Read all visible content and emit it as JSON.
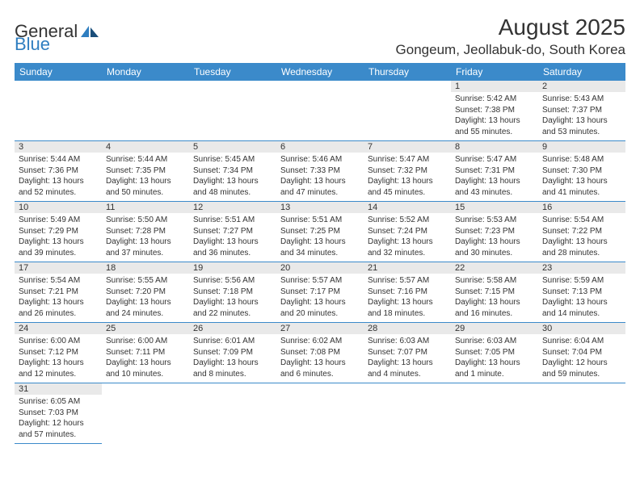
{
  "logo": {
    "text1": "General",
    "text2": "Blue"
  },
  "title": {
    "month": "August 2025",
    "location": "Gongeum, Jeollabuk-do, South Korea"
  },
  "colors": {
    "header_bg": "#3b8aca",
    "header_text": "#ffffff",
    "daynum_bg": "#e9e9e9",
    "border": "#3b8aca",
    "text": "#333333",
    "logo_accent": "#2f7ec0"
  },
  "weekdays": [
    "Sunday",
    "Monday",
    "Tuesday",
    "Wednesday",
    "Thursday",
    "Friday",
    "Saturday"
  ],
  "weeks": [
    [
      null,
      null,
      null,
      null,
      null,
      {
        "n": "1",
        "sr": "Sunrise: 5:42 AM",
        "ss": "Sunset: 7:38 PM",
        "dl": "Daylight: 13 hours and 55 minutes."
      },
      {
        "n": "2",
        "sr": "Sunrise: 5:43 AM",
        "ss": "Sunset: 7:37 PM",
        "dl": "Daylight: 13 hours and 53 minutes."
      }
    ],
    [
      {
        "n": "3",
        "sr": "Sunrise: 5:44 AM",
        "ss": "Sunset: 7:36 PM",
        "dl": "Daylight: 13 hours and 52 minutes."
      },
      {
        "n": "4",
        "sr": "Sunrise: 5:44 AM",
        "ss": "Sunset: 7:35 PM",
        "dl": "Daylight: 13 hours and 50 minutes."
      },
      {
        "n": "5",
        "sr": "Sunrise: 5:45 AM",
        "ss": "Sunset: 7:34 PM",
        "dl": "Daylight: 13 hours and 48 minutes."
      },
      {
        "n": "6",
        "sr": "Sunrise: 5:46 AM",
        "ss": "Sunset: 7:33 PM",
        "dl": "Daylight: 13 hours and 47 minutes."
      },
      {
        "n": "7",
        "sr": "Sunrise: 5:47 AM",
        "ss": "Sunset: 7:32 PM",
        "dl": "Daylight: 13 hours and 45 minutes."
      },
      {
        "n": "8",
        "sr": "Sunrise: 5:47 AM",
        "ss": "Sunset: 7:31 PM",
        "dl": "Daylight: 13 hours and 43 minutes."
      },
      {
        "n": "9",
        "sr": "Sunrise: 5:48 AM",
        "ss": "Sunset: 7:30 PM",
        "dl": "Daylight: 13 hours and 41 minutes."
      }
    ],
    [
      {
        "n": "10",
        "sr": "Sunrise: 5:49 AM",
        "ss": "Sunset: 7:29 PM",
        "dl": "Daylight: 13 hours and 39 minutes."
      },
      {
        "n": "11",
        "sr": "Sunrise: 5:50 AM",
        "ss": "Sunset: 7:28 PM",
        "dl": "Daylight: 13 hours and 37 minutes."
      },
      {
        "n": "12",
        "sr": "Sunrise: 5:51 AM",
        "ss": "Sunset: 7:27 PM",
        "dl": "Daylight: 13 hours and 36 minutes."
      },
      {
        "n": "13",
        "sr": "Sunrise: 5:51 AM",
        "ss": "Sunset: 7:25 PM",
        "dl": "Daylight: 13 hours and 34 minutes."
      },
      {
        "n": "14",
        "sr": "Sunrise: 5:52 AM",
        "ss": "Sunset: 7:24 PM",
        "dl": "Daylight: 13 hours and 32 minutes."
      },
      {
        "n": "15",
        "sr": "Sunrise: 5:53 AM",
        "ss": "Sunset: 7:23 PM",
        "dl": "Daylight: 13 hours and 30 minutes."
      },
      {
        "n": "16",
        "sr": "Sunrise: 5:54 AM",
        "ss": "Sunset: 7:22 PM",
        "dl": "Daylight: 13 hours and 28 minutes."
      }
    ],
    [
      {
        "n": "17",
        "sr": "Sunrise: 5:54 AM",
        "ss": "Sunset: 7:21 PM",
        "dl": "Daylight: 13 hours and 26 minutes."
      },
      {
        "n": "18",
        "sr": "Sunrise: 5:55 AM",
        "ss": "Sunset: 7:20 PM",
        "dl": "Daylight: 13 hours and 24 minutes."
      },
      {
        "n": "19",
        "sr": "Sunrise: 5:56 AM",
        "ss": "Sunset: 7:18 PM",
        "dl": "Daylight: 13 hours and 22 minutes."
      },
      {
        "n": "20",
        "sr": "Sunrise: 5:57 AM",
        "ss": "Sunset: 7:17 PM",
        "dl": "Daylight: 13 hours and 20 minutes."
      },
      {
        "n": "21",
        "sr": "Sunrise: 5:57 AM",
        "ss": "Sunset: 7:16 PM",
        "dl": "Daylight: 13 hours and 18 minutes."
      },
      {
        "n": "22",
        "sr": "Sunrise: 5:58 AM",
        "ss": "Sunset: 7:15 PM",
        "dl": "Daylight: 13 hours and 16 minutes."
      },
      {
        "n": "23",
        "sr": "Sunrise: 5:59 AM",
        "ss": "Sunset: 7:13 PM",
        "dl": "Daylight: 13 hours and 14 minutes."
      }
    ],
    [
      {
        "n": "24",
        "sr": "Sunrise: 6:00 AM",
        "ss": "Sunset: 7:12 PM",
        "dl": "Daylight: 13 hours and 12 minutes."
      },
      {
        "n": "25",
        "sr": "Sunrise: 6:00 AM",
        "ss": "Sunset: 7:11 PM",
        "dl": "Daylight: 13 hours and 10 minutes."
      },
      {
        "n": "26",
        "sr": "Sunrise: 6:01 AM",
        "ss": "Sunset: 7:09 PM",
        "dl": "Daylight: 13 hours and 8 minutes."
      },
      {
        "n": "27",
        "sr": "Sunrise: 6:02 AM",
        "ss": "Sunset: 7:08 PM",
        "dl": "Daylight: 13 hours and 6 minutes."
      },
      {
        "n": "28",
        "sr": "Sunrise: 6:03 AM",
        "ss": "Sunset: 7:07 PM",
        "dl": "Daylight: 13 hours and 4 minutes."
      },
      {
        "n": "29",
        "sr": "Sunrise: 6:03 AM",
        "ss": "Sunset: 7:05 PM",
        "dl": "Daylight: 13 hours and 1 minute."
      },
      {
        "n": "30",
        "sr": "Sunrise: 6:04 AM",
        "ss": "Sunset: 7:04 PM",
        "dl": "Daylight: 12 hours and 59 minutes."
      }
    ],
    [
      {
        "n": "31",
        "sr": "Sunrise: 6:05 AM",
        "ss": "Sunset: 7:03 PM",
        "dl": "Daylight: 12 hours and 57 minutes."
      },
      null,
      null,
      null,
      null,
      null,
      null
    ]
  ]
}
